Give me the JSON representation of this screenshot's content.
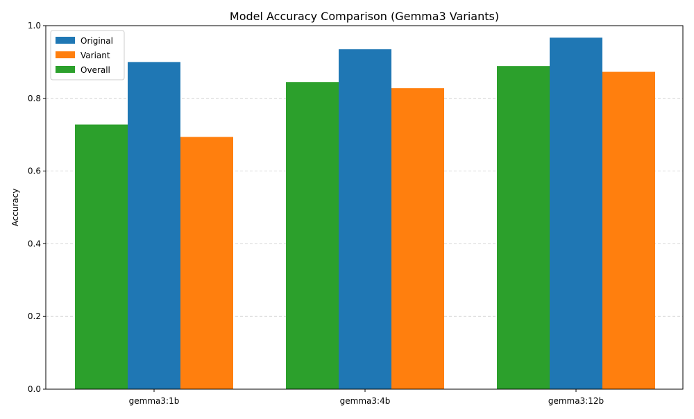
{
  "chart_data": {
    "type": "bar",
    "title": "Model Accuracy Comparison (Gemma3 Variants)",
    "xlabel": "",
    "ylabel": "Accuracy",
    "ylim": [
      0,
      1.0
    ],
    "yticks": [
      "0.0",
      "0.2",
      "0.4",
      "0.6",
      "0.8",
      "1.0"
    ],
    "categories": [
      "gemma3:1b",
      "gemma3:4b",
      "gemma3:12b"
    ],
    "series": [
      {
        "name": "Overall",
        "color": "#2ca02c",
        "values": [
          0.728,
          0.845,
          0.889
        ]
      },
      {
        "name": "Original",
        "color": "#1f77b4",
        "values": [
          0.9,
          0.935,
          0.967
        ]
      },
      {
        "name": "Variant",
        "color": "#ff7f0e",
        "values": [
          0.694,
          0.828,
          0.873
        ]
      }
    ],
    "legend": {
      "placement": "top-left",
      "order": [
        "Original",
        "Variant",
        "Overall"
      ]
    },
    "grid": {
      "y": true,
      "x": false,
      "style": "dashed"
    }
  }
}
